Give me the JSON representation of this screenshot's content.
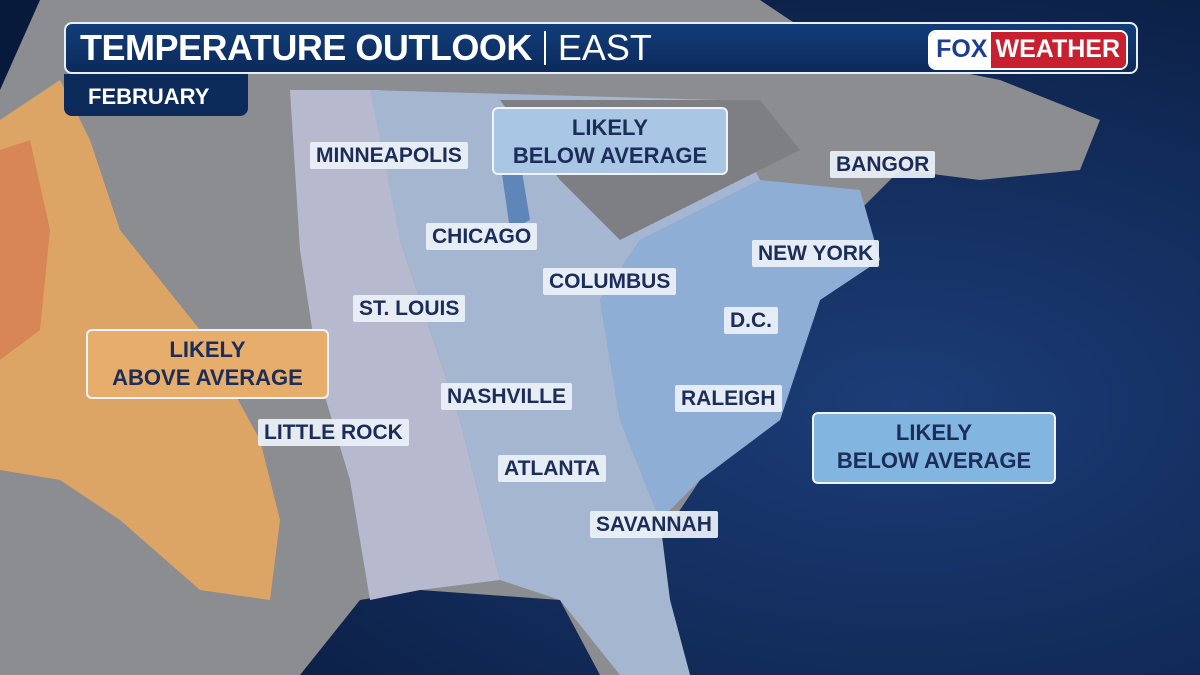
{
  "header": {
    "title": "TEMPERATURE OUTLOOK",
    "region": "EAST",
    "month": "FEBRUARY"
  },
  "logo": {
    "part1": "FOX",
    "part2": "WEATHER"
  },
  "zones": [
    {
      "line1": "LIKELY",
      "line2": "BELOW AVERAGE",
      "color": "#a9c6e4"
    },
    {
      "line1": "LIKELY",
      "line2": "ABOVE AVERAGE",
      "color": "#e6ae6a"
    },
    {
      "line1": "LIKELY",
      "line2": "BELOW AVERAGE",
      "color": "#82b5e0"
    }
  ],
  "cities": [
    "MINNEAPOLIS",
    "BANGOR",
    "CHICAGO",
    "NEW YORK",
    "COLUMBUS",
    "ST. LOUIS",
    "D.C.",
    "NASHVILLE",
    "RALEIGH",
    "LITTLE ROCK",
    "ATLANTA",
    "SAVANNAH"
  ]
}
